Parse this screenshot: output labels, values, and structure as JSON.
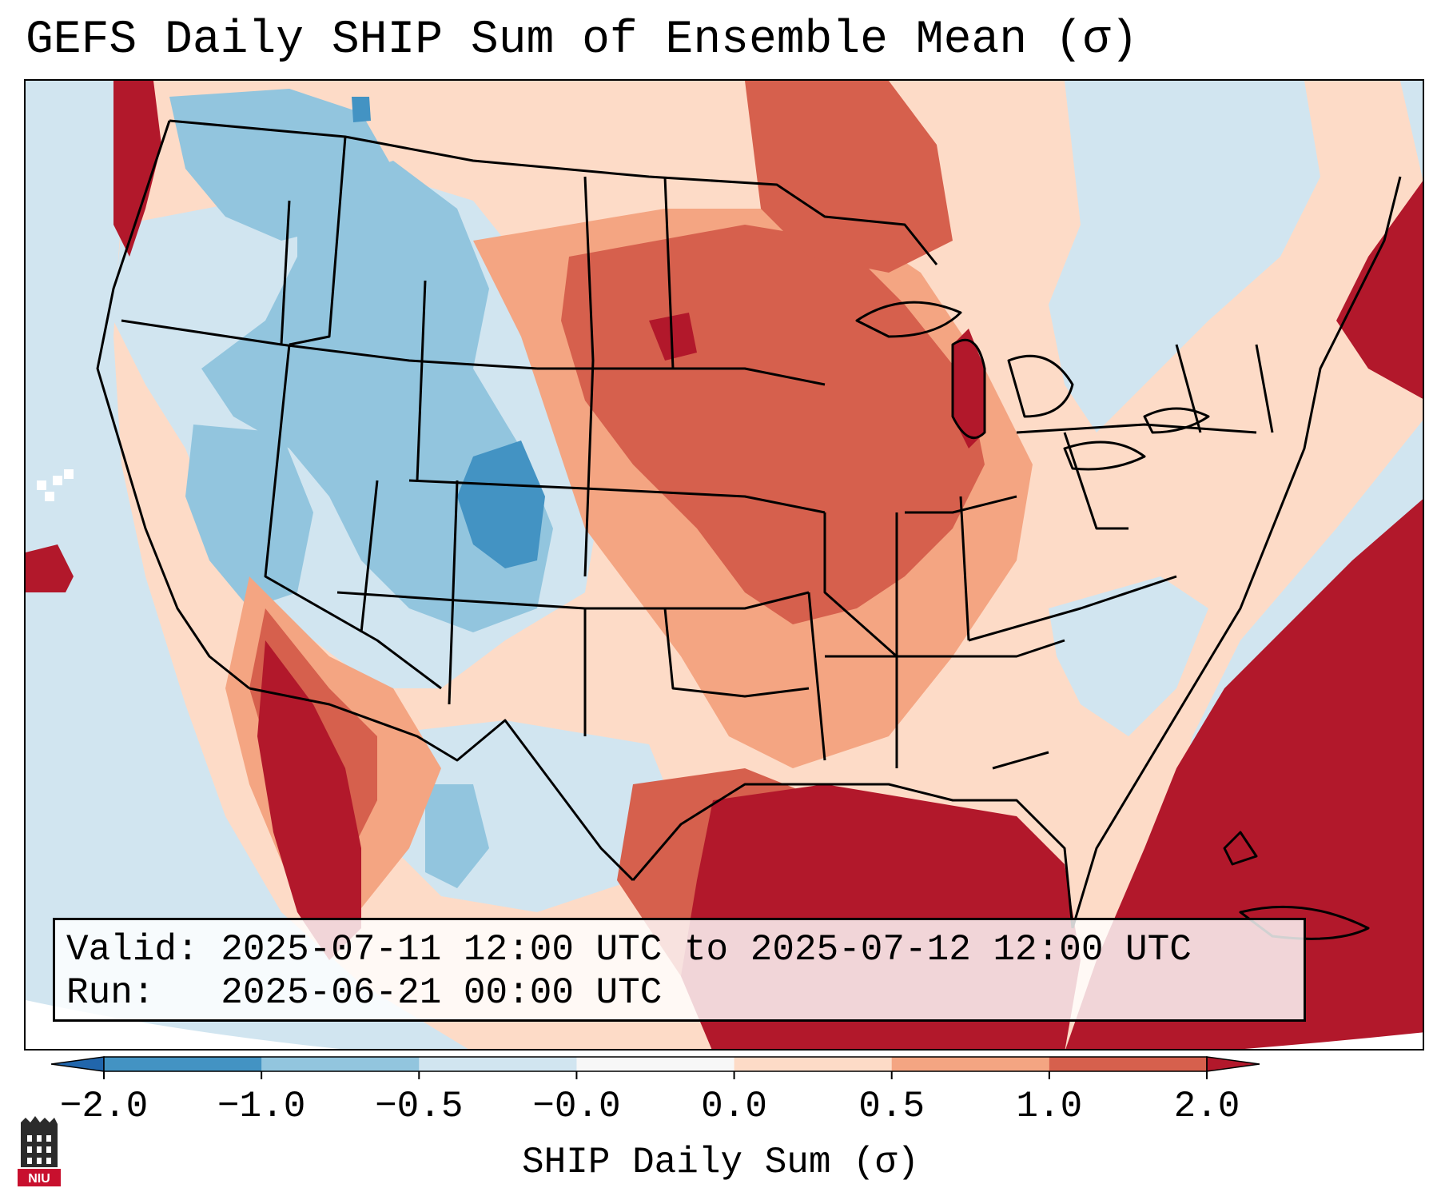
{
  "title": "GEFS Daily SHIP Sum of Ensemble Mean (σ)",
  "info": {
    "valid_label": "Valid:",
    "valid_value": "2025-07-11 12:00 UTC to 2025-07-12 12:00 UTC",
    "run_label": "Run:",
    "run_value": "2025-06-21 00:00 UTC"
  },
  "colorbar": {
    "label": "SHIP Daily Sum (σ)",
    "tick_labels": [
      "−2.0",
      "−1.0",
      "−0.5",
      "−0.0",
      "0.0",
      "0.5",
      "1.0",
      "2.0"
    ],
    "bins": [
      {
        "range": [
          -2.0,
          -1.0
        ],
        "color": "#4393c3"
      },
      {
        "range": [
          -1.0,
          -0.5
        ],
        "color": "#92c5de"
      },
      {
        "range": [
          -0.5,
          -0.0
        ],
        "color": "#d1e5f0"
      },
      {
        "range": [
          -0.0,
          0.0
        ],
        "color": "#f7f7f7"
      },
      {
        "range": [
          0.0,
          0.5
        ],
        "color": "#fddbc7"
      },
      {
        "range": [
          0.5,
          1.0
        ],
        "color": "#f4a582"
      },
      {
        "range": [
          1.0,
          2.0
        ],
        "color": "#d6604d"
      }
    ],
    "under_color": "#2166ac",
    "over_color": "#b2182b",
    "extend": "both"
  },
  "map": {
    "projection": "lambert-conformal-conus",
    "field_colors": {
      "strong_negative": "#4393c3",
      "negative": "#92c5de",
      "slight_negative": "#d1e5f0",
      "neutral": "#f7f7f7",
      "slight_positive": "#fddbc7",
      "positive": "#f4a582",
      "strong_positive": "#d6604d",
      "extreme_positive": "#b2182b"
    },
    "boundaries": "state-and-country-lines"
  },
  "logo": {
    "icon": "niu-logo-icon",
    "text": "NIU",
    "color": "#c8102e"
  }
}
